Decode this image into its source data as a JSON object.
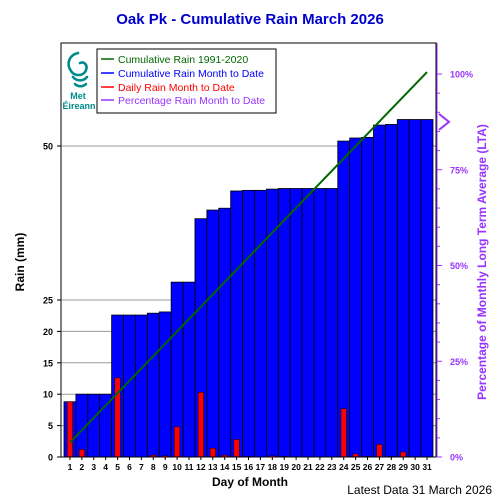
{
  "colors": {
    "lta_line": "#006600",
    "cumulative_bar": "#0000ff",
    "daily_bar": "#ff0000",
    "percentage": "#9933ff",
    "title": "#0000cc",
    "logo": "#008a8a"
  },
  "logo": {
    "line1": "Met",
    "line2": "Éireann",
    "icon": "swirl-icon"
  },
  "footer_text": "Latest Data 31 March 2026",
  "chart_data": {
    "type": "bar",
    "title": "Oak Pk - Cumulative Rain March   2026",
    "xlabel": "Day of Month",
    "ylabel": "Rain (mm)",
    "y2label": "Percentage of Monthly Long Term Average (LTA)",
    "categories": [
      "1",
      "2",
      "3",
      "4",
      "5",
      "6",
      "7",
      "8",
      "9",
      "10",
      "11",
      "12",
      "13",
      "14",
      "15",
      "16",
      "17",
      "18",
      "19",
      "20",
      "21",
      "22",
      "23",
      "24",
      "25",
      "26",
      "27",
      "28",
      "29",
      "30",
      "31"
    ],
    "y_ticks": [
      0,
      5,
      10,
      15,
      20,
      25,
      50
    ],
    "y_axis_break": [
      25,
      50
    ],
    "y2_ticks": [
      "0%",
      "25%",
      "50%",
      "75%",
      "100%"
    ],
    "y2_range": [
      0,
      100
    ],
    "grid": true,
    "legend_position": "top-left",
    "series": [
      {
        "name": "Cumulative Rain 1991-2020",
        "type": "line",
        "start": 2.3,
        "end": 62.0
      },
      {
        "name": "Cumulative Rain Month to Date",
        "type": "bar",
        "values": [
          8.8,
          10.0,
          10.0,
          10.0,
          22.6,
          22.6,
          22.6,
          22.9,
          23.1,
          27.9,
          27.9,
          38.2,
          39.6,
          39.9,
          42.7,
          42.8,
          42.8,
          43.0,
          43.1,
          43.1,
          43.1,
          43.1,
          43.1,
          50.8,
          51.3,
          51.4,
          53.4,
          53.5,
          54.3,
          54.3,
          54.3
        ]
      },
      {
        "name": "Daily Rain Month to Date",
        "type": "bar",
        "values": [
          8.8,
          1.2,
          0.0,
          0.0,
          12.6,
          0.0,
          0.0,
          0.3,
          0.2,
          4.8,
          0.0,
          10.3,
          1.4,
          0.3,
          2.8,
          0.1,
          0.0,
          0.2,
          0.1,
          0.0,
          0.0,
          0.0,
          0.0,
          7.7,
          0.5,
          0.1,
          2.0,
          0.1,
          0.8,
          0.0,
          0.0
        ]
      },
      {
        "name": "Percentage Rain Month to Date",
        "type": "marker",
        "value": 87.5
      }
    ]
  }
}
